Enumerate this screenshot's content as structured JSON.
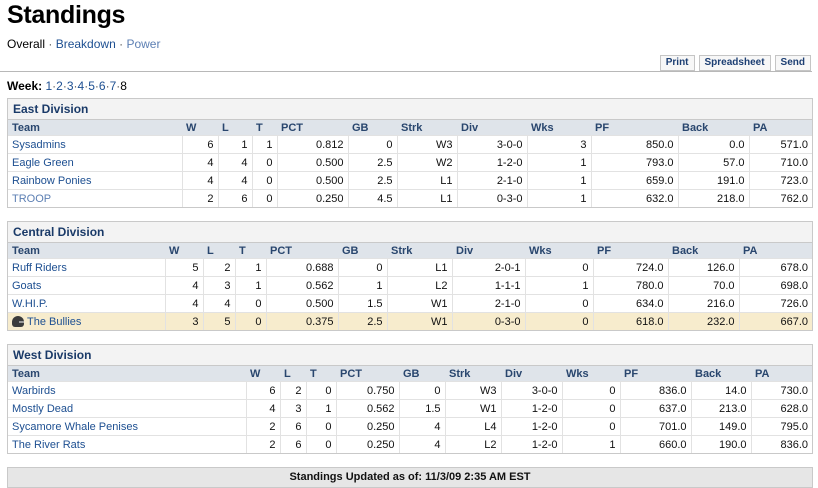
{
  "page": {
    "title": "Standings",
    "subnav": {
      "overall": "Overall",
      "breakdown": "Breakdown",
      "power": "Power",
      "sep": "·"
    }
  },
  "tools": {
    "print": "Print",
    "spreadsheet": "Spreadsheet",
    "send": "Send"
  },
  "weeks": {
    "label": "Week:",
    "items": [
      "1",
      "2",
      "3",
      "4",
      "5",
      "6",
      "7",
      "8"
    ],
    "current": "8",
    "dot": "·"
  },
  "columns": [
    "Team",
    "W",
    "L",
    "T",
    "PCT",
    "GB",
    "Strk",
    "Div",
    "Wks",
    "PF",
    "Back",
    "PA"
  ],
  "divisions": [
    {
      "name": "East Division",
      "rows": [
        {
          "team": "Sysadmins",
          "w": "6",
          "l": "1",
          "t": "1",
          "pct": "0.812",
          "gb": "0",
          "strk": "W3",
          "div": "3-0-0",
          "wks": "3",
          "pf": "850.0",
          "back": "0.0",
          "pa": "571.0"
        },
        {
          "team": "Eagle Green",
          "w": "4",
          "l": "4",
          "t": "0",
          "pct": "0.500",
          "gb": "2.5",
          "strk": "W2",
          "div": "1-2-0",
          "wks": "1",
          "pf": "793.0",
          "back": "57.0",
          "pa": "710.0"
        },
        {
          "team": "Rainbow Ponies",
          "w": "4",
          "l": "4",
          "t": "0",
          "pct": "0.500",
          "gb": "2.5",
          "strk": "L1",
          "div": "2-1-0",
          "wks": "1",
          "pf": "659.0",
          "back": "191.0",
          "pa": "723.0"
        },
        {
          "team": "TROOP",
          "w": "2",
          "l": "6",
          "t": "0",
          "pct": "0.250",
          "gb": "4.5",
          "strk": "L1",
          "div": "0-3-0",
          "wks": "1",
          "pf": "632.0",
          "back": "218.0",
          "pa": "762.0"
        }
      ]
    },
    {
      "name": "Central Division",
      "rows": [
        {
          "team": "Ruff Riders",
          "w": "5",
          "l": "2",
          "t": "1",
          "pct": "0.688",
          "gb": "0",
          "strk": "L1",
          "div": "2-0-1",
          "wks": "0",
          "pf": "724.0",
          "back": "126.0",
          "pa": "678.0"
        },
        {
          "team": "Goats",
          "w": "4",
          "l": "3",
          "t": "1",
          "pct": "0.562",
          "gb": "1",
          "strk": "L2",
          "div": "1-1-1",
          "wks": "1",
          "pf": "780.0",
          "back": "70.0",
          "pa": "698.0"
        },
        {
          "team": "W.HI.P.",
          "w": "4",
          "l": "4",
          "t": "0",
          "pct": "0.500",
          "gb": "1.5",
          "strk": "W1",
          "div": "2-1-0",
          "wks": "0",
          "pf": "634.0",
          "back": "216.0",
          "pa": "726.0"
        },
        {
          "team": "The Bullies",
          "w": "3",
          "l": "5",
          "t": "0",
          "pct": "0.375",
          "gb": "2.5",
          "strk": "W1",
          "div": "0-3-0",
          "wks": "0",
          "pf": "618.0",
          "back": "232.0",
          "pa": "667.0",
          "mine": true
        }
      ]
    },
    {
      "name": "West Division",
      "rows": [
        {
          "team": "Warbirds",
          "w": "6",
          "l": "2",
          "t": "0",
          "pct": "0.750",
          "gb": "0",
          "strk": "W3",
          "div": "3-0-0",
          "wks": "0",
          "pf": "836.0",
          "back": "14.0",
          "pa": "730.0"
        },
        {
          "team": "Mostly Dead",
          "w": "4",
          "l": "3",
          "t": "1",
          "pct": "0.562",
          "gb": "1.5",
          "strk": "W1",
          "div": "1-2-0",
          "wks": "0",
          "pf": "637.0",
          "back": "213.0",
          "pa": "628.0"
        },
        {
          "team": "Sycamore Whale Penises",
          "w": "2",
          "l": "6",
          "t": "0",
          "pct": "0.250",
          "gb": "4",
          "strk": "L4",
          "div": "1-2-0",
          "wks": "0",
          "pf": "701.0",
          "back": "149.0",
          "pa": "795.0"
        },
        {
          "team": "The River Rats",
          "w": "2",
          "l": "6",
          "t": "0",
          "pct": "0.250",
          "gb": "4",
          "strk": "L2",
          "div": "1-2-0",
          "wks": "1",
          "pf": "660.0",
          "back": "190.0",
          "pa": "836.0"
        }
      ]
    }
  ],
  "footer": {
    "text": "Standings Updated as of: 11/3/09 2:35 AM EST"
  },
  "icons": {
    "my-team": "helmet-icon"
  },
  "colors": {
    "header_bg": "#dfe4ea",
    "highlight_row": "#f7eccd",
    "link": "#1d4f91",
    "division_title": "#1a3a68"
  }
}
